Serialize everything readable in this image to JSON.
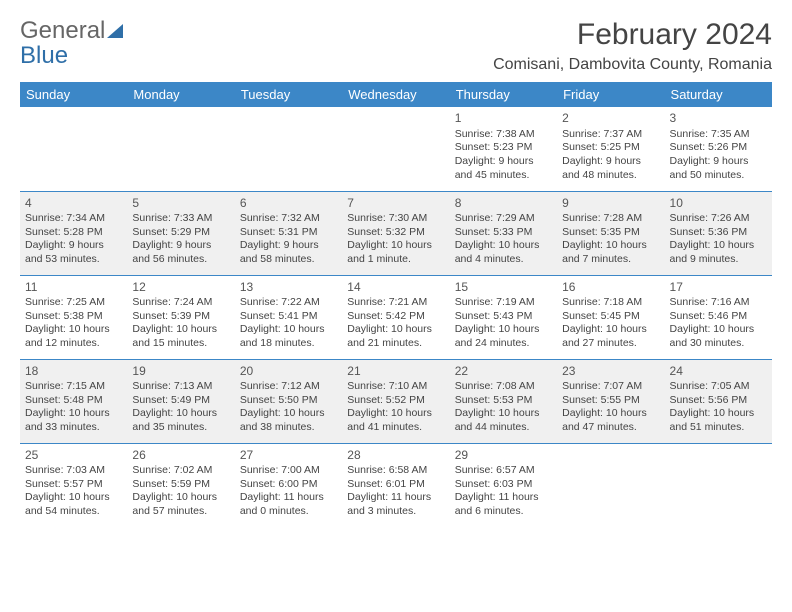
{
  "logo": {
    "text1": "General",
    "text2": "Blue"
  },
  "title": "February 2024",
  "location": "Comisani, Dambovita County, Romania",
  "colors": {
    "header_bg": "#3c87c7",
    "header_text": "#ffffff",
    "row_border": "#3c87c7",
    "shaded_bg": "#f0f0f0",
    "body_text": "#444444",
    "logo_accent": "#2f6fa8"
  },
  "day_names": [
    "Sunday",
    "Monday",
    "Tuesday",
    "Wednesday",
    "Thursday",
    "Friday",
    "Saturday"
  ],
  "weeks": [
    {
      "shaded": false,
      "cells": [
        null,
        null,
        null,
        null,
        {
          "n": "1",
          "sr": "Sunrise: 7:38 AM",
          "ss": "Sunset: 5:23 PM",
          "dl": "Daylight: 9 hours and 45 minutes."
        },
        {
          "n": "2",
          "sr": "Sunrise: 7:37 AM",
          "ss": "Sunset: 5:25 PM",
          "dl": "Daylight: 9 hours and 48 minutes."
        },
        {
          "n": "3",
          "sr": "Sunrise: 7:35 AM",
          "ss": "Sunset: 5:26 PM",
          "dl": "Daylight: 9 hours and 50 minutes."
        }
      ]
    },
    {
      "shaded": true,
      "cells": [
        {
          "n": "4",
          "sr": "Sunrise: 7:34 AM",
          "ss": "Sunset: 5:28 PM",
          "dl": "Daylight: 9 hours and 53 minutes."
        },
        {
          "n": "5",
          "sr": "Sunrise: 7:33 AM",
          "ss": "Sunset: 5:29 PM",
          "dl": "Daylight: 9 hours and 56 minutes."
        },
        {
          "n": "6",
          "sr": "Sunrise: 7:32 AM",
          "ss": "Sunset: 5:31 PM",
          "dl": "Daylight: 9 hours and 58 minutes."
        },
        {
          "n": "7",
          "sr": "Sunrise: 7:30 AM",
          "ss": "Sunset: 5:32 PM",
          "dl": "Daylight: 10 hours and 1 minute."
        },
        {
          "n": "8",
          "sr": "Sunrise: 7:29 AM",
          "ss": "Sunset: 5:33 PM",
          "dl": "Daylight: 10 hours and 4 minutes."
        },
        {
          "n": "9",
          "sr": "Sunrise: 7:28 AM",
          "ss": "Sunset: 5:35 PM",
          "dl": "Daylight: 10 hours and 7 minutes."
        },
        {
          "n": "10",
          "sr": "Sunrise: 7:26 AM",
          "ss": "Sunset: 5:36 PM",
          "dl": "Daylight: 10 hours and 9 minutes."
        }
      ]
    },
    {
      "shaded": false,
      "cells": [
        {
          "n": "11",
          "sr": "Sunrise: 7:25 AM",
          "ss": "Sunset: 5:38 PM",
          "dl": "Daylight: 10 hours and 12 minutes."
        },
        {
          "n": "12",
          "sr": "Sunrise: 7:24 AM",
          "ss": "Sunset: 5:39 PM",
          "dl": "Daylight: 10 hours and 15 minutes."
        },
        {
          "n": "13",
          "sr": "Sunrise: 7:22 AM",
          "ss": "Sunset: 5:41 PM",
          "dl": "Daylight: 10 hours and 18 minutes."
        },
        {
          "n": "14",
          "sr": "Sunrise: 7:21 AM",
          "ss": "Sunset: 5:42 PM",
          "dl": "Daylight: 10 hours and 21 minutes."
        },
        {
          "n": "15",
          "sr": "Sunrise: 7:19 AM",
          "ss": "Sunset: 5:43 PM",
          "dl": "Daylight: 10 hours and 24 minutes."
        },
        {
          "n": "16",
          "sr": "Sunrise: 7:18 AM",
          "ss": "Sunset: 5:45 PM",
          "dl": "Daylight: 10 hours and 27 minutes."
        },
        {
          "n": "17",
          "sr": "Sunrise: 7:16 AM",
          "ss": "Sunset: 5:46 PM",
          "dl": "Daylight: 10 hours and 30 minutes."
        }
      ]
    },
    {
      "shaded": true,
      "cells": [
        {
          "n": "18",
          "sr": "Sunrise: 7:15 AM",
          "ss": "Sunset: 5:48 PM",
          "dl": "Daylight: 10 hours and 33 minutes."
        },
        {
          "n": "19",
          "sr": "Sunrise: 7:13 AM",
          "ss": "Sunset: 5:49 PM",
          "dl": "Daylight: 10 hours and 35 minutes."
        },
        {
          "n": "20",
          "sr": "Sunrise: 7:12 AM",
          "ss": "Sunset: 5:50 PM",
          "dl": "Daylight: 10 hours and 38 minutes."
        },
        {
          "n": "21",
          "sr": "Sunrise: 7:10 AM",
          "ss": "Sunset: 5:52 PM",
          "dl": "Daylight: 10 hours and 41 minutes."
        },
        {
          "n": "22",
          "sr": "Sunrise: 7:08 AM",
          "ss": "Sunset: 5:53 PM",
          "dl": "Daylight: 10 hours and 44 minutes."
        },
        {
          "n": "23",
          "sr": "Sunrise: 7:07 AM",
          "ss": "Sunset: 5:55 PM",
          "dl": "Daylight: 10 hours and 47 minutes."
        },
        {
          "n": "24",
          "sr": "Sunrise: 7:05 AM",
          "ss": "Sunset: 5:56 PM",
          "dl": "Daylight: 10 hours and 51 minutes."
        }
      ]
    },
    {
      "shaded": false,
      "cells": [
        {
          "n": "25",
          "sr": "Sunrise: 7:03 AM",
          "ss": "Sunset: 5:57 PM",
          "dl": "Daylight: 10 hours and 54 minutes."
        },
        {
          "n": "26",
          "sr": "Sunrise: 7:02 AM",
          "ss": "Sunset: 5:59 PM",
          "dl": "Daylight: 10 hours and 57 minutes."
        },
        {
          "n": "27",
          "sr": "Sunrise: 7:00 AM",
          "ss": "Sunset: 6:00 PM",
          "dl": "Daylight: 11 hours and 0 minutes."
        },
        {
          "n": "28",
          "sr": "Sunrise: 6:58 AM",
          "ss": "Sunset: 6:01 PM",
          "dl": "Daylight: 11 hours and 3 minutes."
        },
        {
          "n": "29",
          "sr": "Sunrise: 6:57 AM",
          "ss": "Sunset: 6:03 PM",
          "dl": "Daylight: 11 hours and 6 minutes."
        },
        null,
        null
      ]
    }
  ]
}
